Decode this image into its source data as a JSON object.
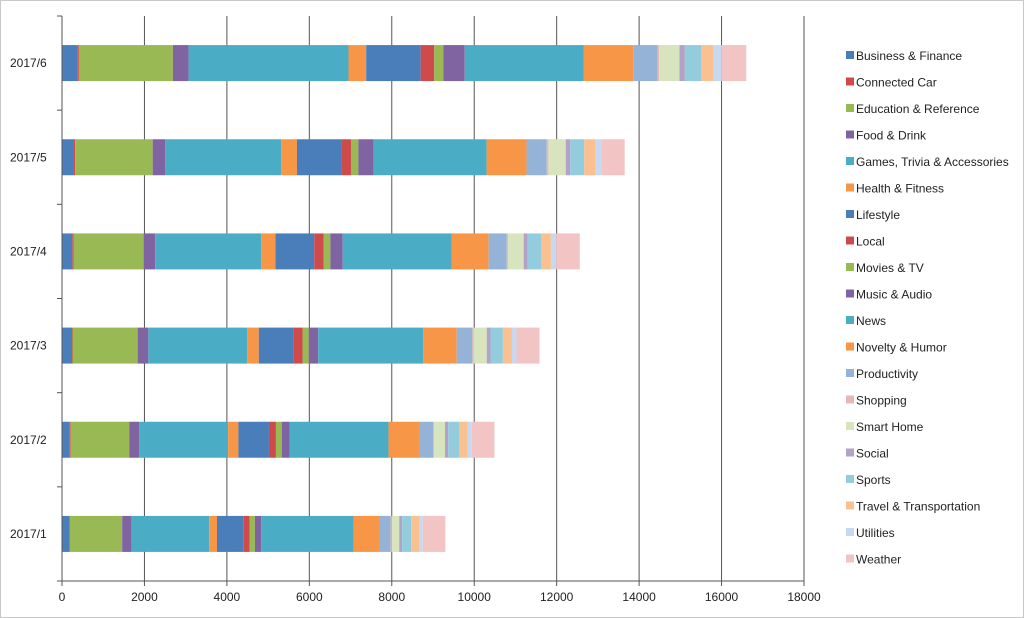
{
  "chart_data": {
    "type": "bar",
    "orientation": "horizontal",
    "stacked": true,
    "categories": [
      "2017/1",
      "2017/2",
      "2017/3",
      "2017/4",
      "2017/5",
      "2017/6"
    ],
    "xlim": [
      0,
      18000
    ],
    "x_ticks": [
      0,
      2000,
      4000,
      6000,
      8000,
      10000,
      12000,
      14000,
      16000,
      18000
    ],
    "grid": true,
    "legend_position": "right",
    "title": "",
    "xlabel": "",
    "ylabel": "",
    "series": [
      {
        "name": "Business & Finance",
        "color": "#4a7ebb",
        "values": [
          170,
          190,
          230,
          250,
          290,
          380
        ]
      },
      {
        "name": "Connected Car",
        "color": "#cf4b4b",
        "values": [
          20,
          20,
          25,
          30,
          30,
          30
        ]
      },
      {
        "name": "Education & Reference",
        "color": "#98b954",
        "values": [
          1270,
          1420,
          1580,
          1700,
          1880,
          2280
        ]
      },
      {
        "name": "Food & Drink",
        "color": "#8064a2",
        "values": [
          230,
          240,
          260,
          280,
          300,
          380
        ]
      },
      {
        "name": "Games, Trivia & Accessories",
        "color": "#4bacc6",
        "values": [
          1880,
          2160,
          2400,
          2570,
          2820,
          3880
        ]
      },
      {
        "name": "Health & Fitness",
        "color": "#f79646",
        "values": [
          190,
          250,
          280,
          350,
          380,
          430
        ]
      },
      {
        "name": "Lifestyle",
        "color": "#4a7ebb",
        "values": [
          650,
          740,
          850,
          940,
          1070,
          1320
        ]
      },
      {
        "name": "Local",
        "color": "#cf4b4b",
        "values": [
          140,
          170,
          210,
          230,
          240,
          330
        ]
      },
      {
        "name": "Movies & TV",
        "color": "#98b954",
        "values": [
          130,
          140,
          150,
          160,
          180,
          220
        ]
      },
      {
        "name": "Music & Audio",
        "color": "#8064a2",
        "values": [
          150,
          190,
          230,
          300,
          370,
          520
        ]
      },
      {
        "name": "News",
        "color": "#4bacc6",
        "values": [
          2240,
          2400,
          2550,
          2640,
          2740,
          2890
        ]
      },
      {
        "name": "Novelty & Humor",
        "color": "#f79646",
        "values": [
          620,
          740,
          810,
          900,
          970,
          1210
        ]
      },
      {
        "name": "Productivity",
        "color": "#95b3d7",
        "values": [
          280,
          340,
          380,
          440,
          490,
          580
        ]
      },
      {
        "name": "Shopping",
        "color": "#e6b9b8",
        "values": [
          30,
          30,
          30,
          30,
          40,
          40
        ]
      },
      {
        "name": "Smart Home",
        "color": "#d7e4bd",
        "values": [
          180,
          260,
          320,
          380,
          420,
          490
        ]
      },
      {
        "name": "Social",
        "color": "#b3a2c7",
        "values": [
          70,
          80,
          90,
          100,
          110,
          130
        ]
      },
      {
        "name": "Sports",
        "color": "#93cddd",
        "values": [
          220,
          270,
          300,
          320,
          340,
          400
        ]
      },
      {
        "name": "Travel & Transportation",
        "color": "#fac090",
        "values": [
          190,
          200,
          220,
          240,
          270,
          300
        ]
      },
      {
        "name": "Utilities",
        "color": "#c6d9f1",
        "values": [
          90,
          100,
          110,
          130,
          150,
          180
        ]
      },
      {
        "name": "Weather",
        "color": "#f2c4c3",
        "values": [
          550,
          550,
          560,
          570,
          560,
          610
        ]
      }
    ]
  }
}
